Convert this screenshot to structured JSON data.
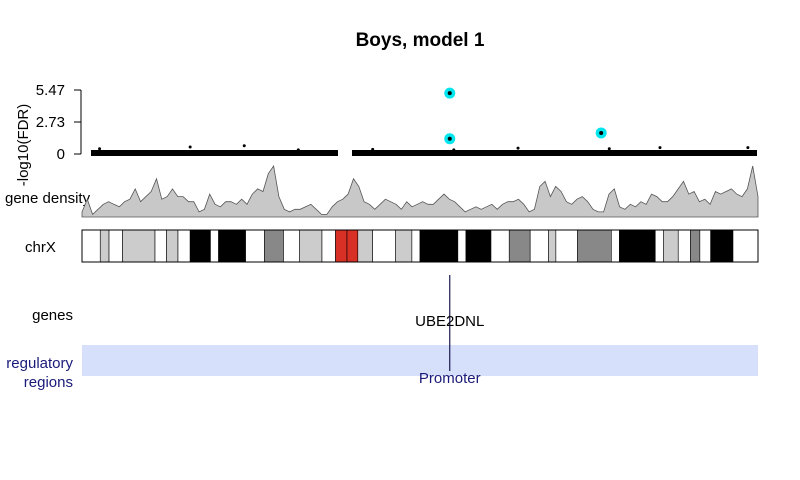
{
  "chart_data": {
    "type": "scatter",
    "title": "Boys, model 1",
    "ylabel": "-log10(FDR)",
    "yticks": [
      0,
      2.73,
      5.47
    ],
    "ylim": [
      0,
      5.47
    ],
    "xlim": [
      0,
      1
    ],
    "highlighted_points": [
      {
        "x": 0.544,
        "y": 5.2
      },
      {
        "x": 0.544,
        "y": 1.3
      },
      {
        "x": 0.768,
        "y": 1.8
      }
    ],
    "background_points": [
      {
        "x": 0.026,
        "y": 0.45
      },
      {
        "x": 0.16,
        "y": 0.6
      },
      {
        "x": 0.24,
        "y": 0.7
      },
      {
        "x": 0.32,
        "y": 0.35
      },
      {
        "x": 0.43,
        "y": 0.4
      },
      {
        "x": 0.55,
        "y": 0.35
      },
      {
        "x": 0.645,
        "y": 0.5
      },
      {
        "x": 0.78,
        "y": 0.45
      },
      {
        "x": 0.855,
        "y": 0.55
      },
      {
        "x": 0.985,
        "y": 0.55
      }
    ],
    "gene_density_label": "gene density",
    "gene_density": [
      0.1,
      0.35,
      0.05,
      0.15,
      0.25,
      0.3,
      0.25,
      0.2,
      0.3,
      0.35,
      0.55,
      0.3,
      0.4,
      0.5,
      0.75,
      0.35,
      0.4,
      0.55,
      0.4,
      0.4,
      0.3,
      0.3,
      0.1,
      0.15,
      0.45,
      0.25,
      0.2,
      0.3,
      0.3,
      0.25,
      0.35,
      0.25,
      0.45,
      0.55,
      0.5,
      0.85,
      1.0,
      0.4,
      0.15,
      0.1,
      0.15,
      0.15,
      0.2,
      0.25,
      0.15,
      0.05,
      0.05,
      0.2,
      0.3,
      0.35,
      0.45,
      0.75,
      0.6,
      0.3,
      0.25,
      0.15,
      0.25,
      0.35,
      0.3,
      0.25,
      0.15,
      0.3,
      0.2,
      0.25,
      0.3,
      0.25,
      0.25,
      0.35,
      0.45,
      0.35,
      0.3,
      0.2,
      0.1,
      0.15,
      0.2,
      0.15,
      0.2,
      0.25,
      0.15,
      0.25,
      0.3,
      0.3,
      0.35,
      0.25,
      0.1,
      0.15,
      0.6,
      0.7,
      0.4,
      0.6,
      0.5,
      0.3,
      0.25,
      0.35,
      0.4,
      0.3,
      0.15,
      0.1,
      0.1,
      0.45,
      0.55,
      0.2,
      0.15,
      0.25,
      0.2,
      0.3,
      0.25,
      0.45,
      0.4,
      0.3,
      0.3,
      0.4,
      0.55,
      0.7,
      0.45,
      0.5,
      0.3,
      0.35,
      0.25,
      0.5,
      0.45,
      0.5,
      0.55,
      0.45,
      0.4,
      0.55,
      1.0,
      0.4
    ]
  },
  "ideogram": {
    "label": "chrX",
    "bands": [
      {
        "start": 0.0,
        "end": 0.027,
        "color": "#ffffff"
      },
      {
        "start": 0.027,
        "end": 0.04,
        "color": "#cccccc"
      },
      {
        "start": 0.04,
        "end": 0.06,
        "color": "#ffffff"
      },
      {
        "start": 0.06,
        "end": 0.108,
        "color": "#cccccc"
      },
      {
        "start": 0.108,
        "end": 0.125,
        "color": "#ffffff"
      },
      {
        "start": 0.125,
        "end": 0.142,
        "color": "#cccccc"
      },
      {
        "start": 0.142,
        "end": 0.16,
        "color": "#ffffff"
      },
      {
        "start": 0.16,
        "end": 0.19,
        "color": "#000000"
      },
      {
        "start": 0.19,
        "end": 0.202,
        "color": "#ffffff"
      },
      {
        "start": 0.202,
        "end": 0.242,
        "color": "#000000"
      },
      {
        "start": 0.242,
        "end": 0.27,
        "color": "#ffffff"
      },
      {
        "start": 0.27,
        "end": 0.298,
        "color": "#888888"
      },
      {
        "start": 0.298,
        "end": 0.322,
        "color": "#ffffff"
      },
      {
        "start": 0.322,
        "end": 0.355,
        "color": "#cccccc"
      },
      {
        "start": 0.355,
        "end": 0.375,
        "color": "#ffffff"
      },
      {
        "start": 0.375,
        "end": 0.392,
        "color": "#d93025"
      },
      {
        "start": 0.392,
        "end": 0.408,
        "color": "#d93025"
      },
      {
        "start": 0.408,
        "end": 0.43,
        "color": "#cccccc"
      },
      {
        "start": 0.43,
        "end": 0.464,
        "color": "#ffffff"
      },
      {
        "start": 0.464,
        "end": 0.488,
        "color": "#cccccc"
      },
      {
        "start": 0.488,
        "end": 0.5,
        "color": "#ffffff"
      },
      {
        "start": 0.5,
        "end": 0.556,
        "color": "#000000"
      },
      {
        "start": 0.556,
        "end": 0.568,
        "color": "#ffffff"
      },
      {
        "start": 0.568,
        "end": 0.605,
        "color": "#000000"
      },
      {
        "start": 0.605,
        "end": 0.632,
        "color": "#ffffff"
      },
      {
        "start": 0.632,
        "end": 0.663,
        "color": "#888888"
      },
      {
        "start": 0.663,
        "end": 0.69,
        "color": "#ffffff"
      },
      {
        "start": 0.69,
        "end": 0.701,
        "color": "#cccccc"
      },
      {
        "start": 0.701,
        "end": 0.733,
        "color": "#ffffff"
      },
      {
        "start": 0.733,
        "end": 0.783,
        "color": "#888888"
      },
      {
        "start": 0.783,
        "end": 0.795,
        "color": "#ffffff"
      },
      {
        "start": 0.795,
        "end": 0.848,
        "color": "#000000"
      },
      {
        "start": 0.848,
        "end": 0.86,
        "color": "#ffffff"
      },
      {
        "start": 0.86,
        "end": 0.882,
        "color": "#cccccc"
      },
      {
        "start": 0.882,
        "end": 0.9,
        "color": "#ffffff"
      },
      {
        "start": 0.9,
        "end": 0.914,
        "color": "#888888"
      },
      {
        "start": 0.914,
        "end": 0.93,
        "color": "#ffffff"
      },
      {
        "start": 0.93,
        "end": 0.963,
        "color": "#000000"
      },
      {
        "start": 0.963,
        "end": 1.0,
        "color": "#ffffff"
      }
    ]
  },
  "genes_track": {
    "label": "genes",
    "genes": [
      {
        "name": "UBE2DNL",
        "position": 0.544
      }
    ]
  },
  "regulatory_track": {
    "label_line1": "regulatory",
    "label_line2": "regions",
    "regions": [
      {
        "name": "Promoter",
        "position": 0.544
      }
    ]
  },
  "colors": {
    "highlight": "#00e5ee",
    "density_fill": "#c8c8c8",
    "regulatory_band": "#d6e0fb",
    "regulatory_text": "#1a1a7a",
    "gene_line": "#1a1a50"
  }
}
